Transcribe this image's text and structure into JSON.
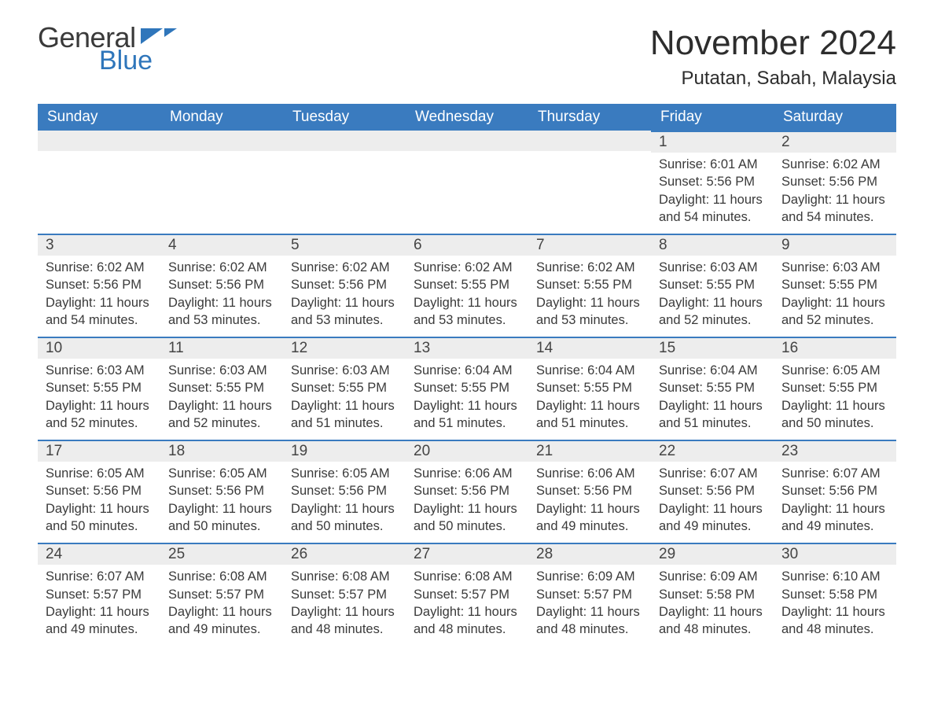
{
  "logo": {
    "word1": "General",
    "word2": "Blue",
    "icon_color": "#2f76bb",
    "text_color_dark": "#3a3a3a"
  },
  "title": "November 2024",
  "subtitle": "Putatan, Sabah, Malaysia",
  "header_bg": "#3a7bbf",
  "header_fg": "#ffffff",
  "daynum_bg": "#ededed",
  "rule_color": "#3a7bbf",
  "body_text_color": "#3a3a3a",
  "columns": [
    "Sunday",
    "Monday",
    "Tuesday",
    "Wednesday",
    "Thursday",
    "Friday",
    "Saturday"
  ],
  "weeks": [
    [
      null,
      null,
      null,
      null,
      null,
      {
        "n": "1",
        "sr": "Sunrise: 6:01 AM",
        "ss": "Sunset: 5:56 PM",
        "d1": "Daylight: 11 hours",
        "d2": "and 54 minutes."
      },
      {
        "n": "2",
        "sr": "Sunrise: 6:02 AM",
        "ss": "Sunset: 5:56 PM",
        "d1": "Daylight: 11 hours",
        "d2": "and 54 minutes."
      }
    ],
    [
      {
        "n": "3",
        "sr": "Sunrise: 6:02 AM",
        "ss": "Sunset: 5:56 PM",
        "d1": "Daylight: 11 hours",
        "d2": "and 54 minutes."
      },
      {
        "n": "4",
        "sr": "Sunrise: 6:02 AM",
        "ss": "Sunset: 5:56 PM",
        "d1": "Daylight: 11 hours",
        "d2": "and 53 minutes."
      },
      {
        "n": "5",
        "sr": "Sunrise: 6:02 AM",
        "ss": "Sunset: 5:56 PM",
        "d1": "Daylight: 11 hours",
        "d2": "and 53 minutes."
      },
      {
        "n": "6",
        "sr": "Sunrise: 6:02 AM",
        "ss": "Sunset: 5:55 PM",
        "d1": "Daylight: 11 hours",
        "d2": "and 53 minutes."
      },
      {
        "n": "7",
        "sr": "Sunrise: 6:02 AM",
        "ss": "Sunset: 5:55 PM",
        "d1": "Daylight: 11 hours",
        "d2": "and 53 minutes."
      },
      {
        "n": "8",
        "sr": "Sunrise: 6:03 AM",
        "ss": "Sunset: 5:55 PM",
        "d1": "Daylight: 11 hours",
        "d2": "and 52 minutes."
      },
      {
        "n": "9",
        "sr": "Sunrise: 6:03 AM",
        "ss": "Sunset: 5:55 PM",
        "d1": "Daylight: 11 hours",
        "d2": "and 52 minutes."
      }
    ],
    [
      {
        "n": "10",
        "sr": "Sunrise: 6:03 AM",
        "ss": "Sunset: 5:55 PM",
        "d1": "Daylight: 11 hours",
        "d2": "and 52 minutes."
      },
      {
        "n": "11",
        "sr": "Sunrise: 6:03 AM",
        "ss": "Sunset: 5:55 PM",
        "d1": "Daylight: 11 hours",
        "d2": "and 52 minutes."
      },
      {
        "n": "12",
        "sr": "Sunrise: 6:03 AM",
        "ss": "Sunset: 5:55 PM",
        "d1": "Daylight: 11 hours",
        "d2": "and 51 minutes."
      },
      {
        "n": "13",
        "sr": "Sunrise: 6:04 AM",
        "ss": "Sunset: 5:55 PM",
        "d1": "Daylight: 11 hours",
        "d2": "and 51 minutes."
      },
      {
        "n": "14",
        "sr": "Sunrise: 6:04 AM",
        "ss": "Sunset: 5:55 PM",
        "d1": "Daylight: 11 hours",
        "d2": "and 51 minutes."
      },
      {
        "n": "15",
        "sr": "Sunrise: 6:04 AM",
        "ss": "Sunset: 5:55 PM",
        "d1": "Daylight: 11 hours",
        "d2": "and 51 minutes."
      },
      {
        "n": "16",
        "sr": "Sunrise: 6:05 AM",
        "ss": "Sunset: 5:55 PM",
        "d1": "Daylight: 11 hours",
        "d2": "and 50 minutes."
      }
    ],
    [
      {
        "n": "17",
        "sr": "Sunrise: 6:05 AM",
        "ss": "Sunset: 5:56 PM",
        "d1": "Daylight: 11 hours",
        "d2": "and 50 minutes."
      },
      {
        "n": "18",
        "sr": "Sunrise: 6:05 AM",
        "ss": "Sunset: 5:56 PM",
        "d1": "Daylight: 11 hours",
        "d2": "and 50 minutes."
      },
      {
        "n": "19",
        "sr": "Sunrise: 6:05 AM",
        "ss": "Sunset: 5:56 PM",
        "d1": "Daylight: 11 hours",
        "d2": "and 50 minutes."
      },
      {
        "n": "20",
        "sr": "Sunrise: 6:06 AM",
        "ss": "Sunset: 5:56 PM",
        "d1": "Daylight: 11 hours",
        "d2": "and 50 minutes."
      },
      {
        "n": "21",
        "sr": "Sunrise: 6:06 AM",
        "ss": "Sunset: 5:56 PM",
        "d1": "Daylight: 11 hours",
        "d2": "and 49 minutes."
      },
      {
        "n": "22",
        "sr": "Sunrise: 6:07 AM",
        "ss": "Sunset: 5:56 PM",
        "d1": "Daylight: 11 hours",
        "d2": "and 49 minutes."
      },
      {
        "n": "23",
        "sr": "Sunrise: 6:07 AM",
        "ss": "Sunset: 5:56 PM",
        "d1": "Daylight: 11 hours",
        "d2": "and 49 minutes."
      }
    ],
    [
      {
        "n": "24",
        "sr": "Sunrise: 6:07 AM",
        "ss": "Sunset: 5:57 PM",
        "d1": "Daylight: 11 hours",
        "d2": "and 49 minutes."
      },
      {
        "n": "25",
        "sr": "Sunrise: 6:08 AM",
        "ss": "Sunset: 5:57 PM",
        "d1": "Daylight: 11 hours",
        "d2": "and 49 minutes."
      },
      {
        "n": "26",
        "sr": "Sunrise: 6:08 AM",
        "ss": "Sunset: 5:57 PM",
        "d1": "Daylight: 11 hours",
        "d2": "and 48 minutes."
      },
      {
        "n": "27",
        "sr": "Sunrise: 6:08 AM",
        "ss": "Sunset: 5:57 PM",
        "d1": "Daylight: 11 hours",
        "d2": "and 48 minutes."
      },
      {
        "n": "28",
        "sr": "Sunrise: 6:09 AM",
        "ss": "Sunset: 5:57 PM",
        "d1": "Daylight: 11 hours",
        "d2": "and 48 minutes."
      },
      {
        "n": "29",
        "sr": "Sunrise: 6:09 AM",
        "ss": "Sunset: 5:58 PM",
        "d1": "Daylight: 11 hours",
        "d2": "and 48 minutes."
      },
      {
        "n": "30",
        "sr": "Sunrise: 6:10 AM",
        "ss": "Sunset: 5:58 PM",
        "d1": "Daylight: 11 hours",
        "d2": "and 48 minutes."
      }
    ]
  ]
}
